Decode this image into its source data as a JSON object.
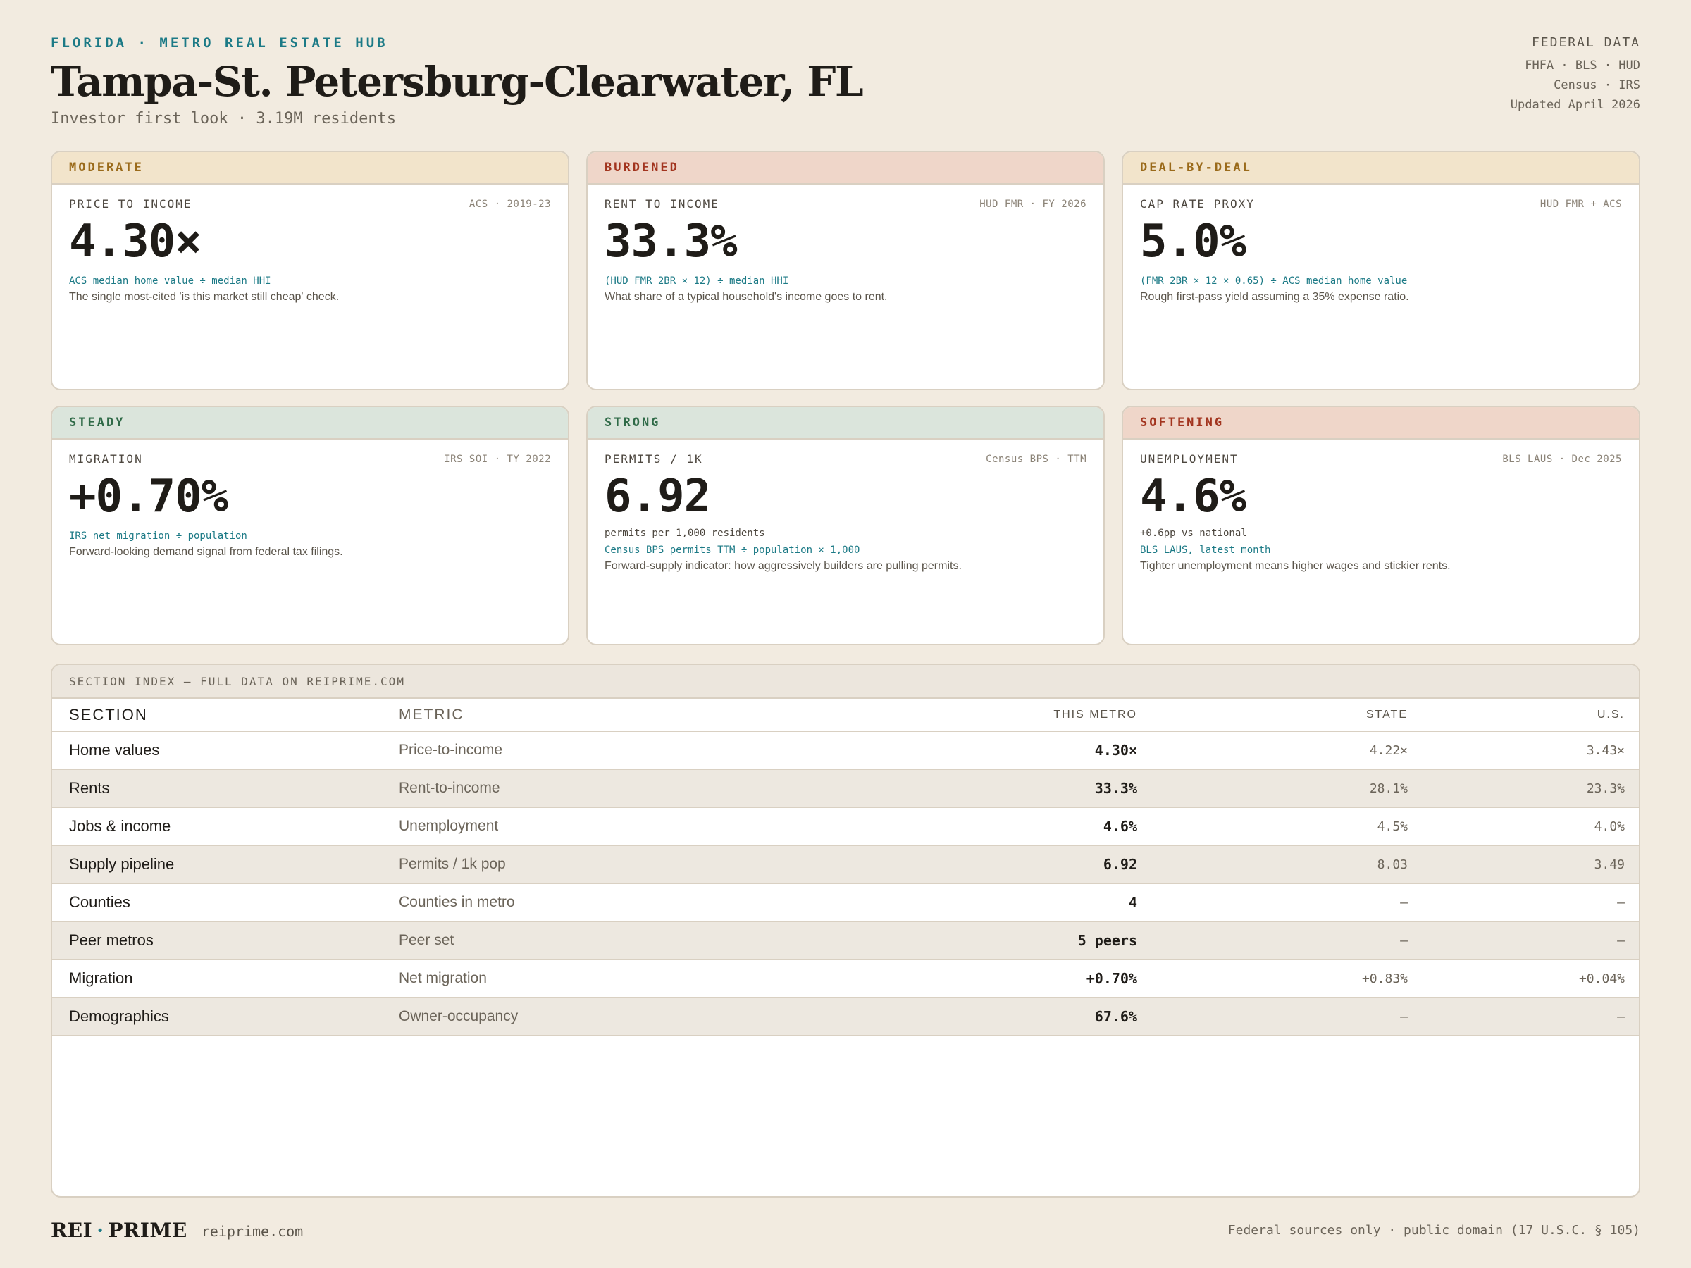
{
  "header": {
    "eyebrow": "FLORIDA · METRO REAL ESTATE HUB",
    "title": "Tampa-St. Petersburg-Clearwater, FL",
    "subtitle": "Investor first look · 3.19M residents",
    "sources_heading": "FEDERAL DATA",
    "sources_line1": "FHFA · BLS · HUD",
    "sources_line2": "Census · IRS",
    "updated": "Updated April 2026"
  },
  "cards": [
    {
      "tone": "MODERATE",
      "tone_color": "#9a6a1a",
      "label": "PRICE TO INCOME",
      "source": "ACS · 2019-23",
      "value": "4.30×",
      "sub": "",
      "formula": "ACS median home value ÷ median HHI",
      "description": "The single most-cited 'is this market still cheap' check."
    },
    {
      "tone": "BURDENED",
      "tone_color": "#a2341e",
      "label": "RENT TO INCOME",
      "source": "HUD FMR · FY 2026",
      "value": "33.3%",
      "sub": "",
      "formula": "(HUD FMR 2BR × 12) ÷ median HHI",
      "description": "What share of a typical household's income goes to rent."
    },
    {
      "tone": "DEAL-BY-DEAL",
      "tone_color": "#9a6a1a",
      "label": "CAP RATE PROXY",
      "source": "HUD FMR + ACS",
      "value": "5.0%",
      "sub": "",
      "formula": "(FMR 2BR × 12 × 0.65) ÷ ACS median home value",
      "description": "Rough first-pass yield assuming a 35% expense ratio."
    },
    {
      "tone": "STEADY",
      "tone_color": "#2f6a47",
      "label": "MIGRATION",
      "source": "IRS SOI · TY 2022",
      "value": "+0.70%",
      "sub": "",
      "formula": "IRS net migration ÷ population",
      "description": "Forward-looking demand signal from federal tax filings."
    },
    {
      "tone": "STRONG",
      "tone_color": "#2f6a47",
      "label": "PERMITS / 1K",
      "source": "Census BPS · TTM",
      "value": "6.92",
      "sub": "permits per 1,000 residents",
      "formula": "Census BPS permits TTM ÷ population × 1,000",
      "description": "Forward-supply indicator: how aggressively builders are pulling permits."
    },
    {
      "tone": "SOFTENING",
      "tone_color": "#a2341e",
      "label": "UNEMPLOYMENT",
      "source": "BLS LAUS · Dec 2025",
      "value": "4.6%",
      "sub": "+0.6pp vs national",
      "formula": "BLS LAUS, latest month",
      "description": "Tighter unemployment means higher wages and stickier rents."
    }
  ],
  "table": {
    "heading": "SECTION INDEX — FULL DATA ON REIPRIME.COM",
    "columns": {
      "section": "SECTION",
      "metric": "METRIC",
      "metro": "THIS METRO",
      "state": "STATE",
      "us": "U.S."
    },
    "rows": [
      {
        "section": "Home values",
        "metric": "Price-to-income",
        "metro": "4.30×",
        "state": "4.22×",
        "us": "3.43×"
      },
      {
        "section": "Rents",
        "metric": "Rent-to-income",
        "metro": "33.3%",
        "state": "28.1%",
        "us": "23.3%"
      },
      {
        "section": "Jobs & income",
        "metric": "Unemployment",
        "metro": "4.6%",
        "state": "4.5%",
        "us": "4.0%"
      },
      {
        "section": "Supply pipeline",
        "metric": "Permits / 1k pop",
        "metro": "6.92",
        "state": "8.03",
        "us": "3.49"
      },
      {
        "section": "Counties",
        "metric": "Counties in metro",
        "metro": "4",
        "state": "–",
        "us": "–"
      },
      {
        "section": "Peer metros",
        "metric": "Peer set",
        "metro": "5 peers",
        "state": "–",
        "us": "–"
      },
      {
        "section": "Migration",
        "metric": "Net migration",
        "metro": "+0.70%",
        "state": "+0.83%",
        "us": "+0.04%"
      },
      {
        "section": "Demographics",
        "metric": "Owner-occupancy",
        "metro": "67.6%",
        "state": "–",
        "us": "–"
      }
    ]
  },
  "footer": {
    "brand_left": "REI",
    "brand_dot": "·",
    "brand_right": "PRIME",
    "site": "reiprime.com",
    "legal": "Federal sources only · public domain (17 U.S.C. § 105)"
  }
}
